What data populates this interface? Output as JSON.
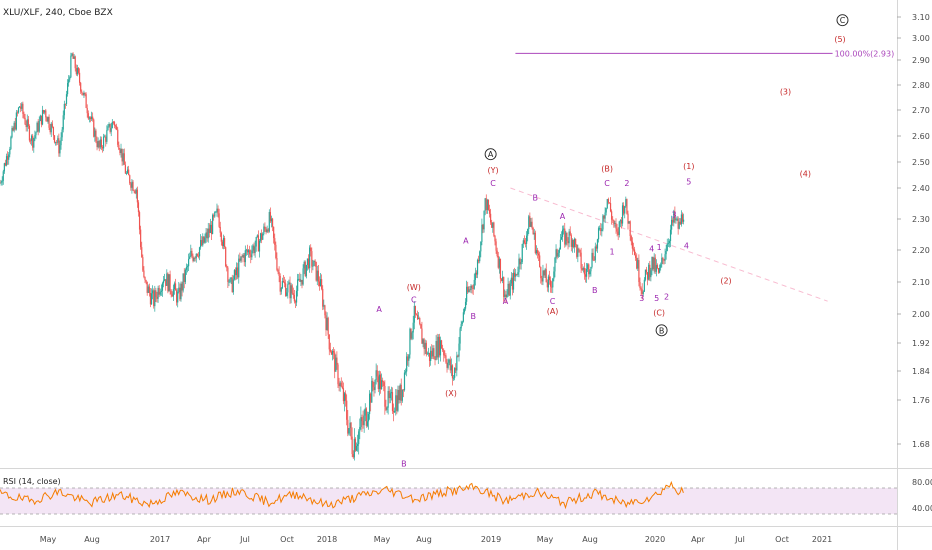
{
  "header": {
    "title": "XLU/XLF, 240, Cboe BZX"
  },
  "rsi": {
    "label": "RSI (14, close)",
    "upper": 80,
    "lower": 40,
    "ticks": [
      "80.00",
      "40.00"
    ]
  },
  "colors": {
    "up": "#26a69a",
    "down": "#ef5350",
    "wave_red": "#c62828",
    "wave_purple": "#9c27b0",
    "fib": "#ab47bc",
    "rsi_line": "#f57c00",
    "rsi_band": "#f3e5f5"
  },
  "chart_data": {
    "type": "candlestick",
    "symbol": "XLU/XLF",
    "interval": "240",
    "exchange": "Cboe BZX",
    "ylim": [
      1.6,
      3.1
    ],
    "y_ticks": [
      "3.10",
      "3.00",
      "2.90",
      "2.80",
      "2.70",
      "2.60",
      "2.50",
      "2.40",
      "2.30",
      "2.20",
      "2.10",
      "2.00",
      "1.92",
      "1.84",
      "1.76",
      "1.68"
    ],
    "x_ticks": [
      "May",
      "Aug",
      "2017",
      "Apr",
      "Jul",
      "Oct",
      "2018",
      "May",
      "Aug",
      "2019",
      "May",
      "Aug",
      "2020",
      "Apr",
      "Jul",
      "Oct",
      "2021"
    ],
    "price_path": [
      {
        "t": 0.0,
        "v": 2.42
      },
      {
        "t": 4.0,
        "v": 2.72
      },
      {
        "t": 6.5,
        "v": 2.58
      },
      {
        "t": 9.0,
        "v": 2.7
      },
      {
        "t": 12.0,
        "v": 2.55
      },
      {
        "t": 14.5,
        "v": 2.92
      },
      {
        "t": 17.0,
        "v": 2.75
      },
      {
        "t": 20.0,
        "v": 2.55
      },
      {
        "t": 23.0,
        "v": 2.66
      },
      {
        "t": 25.5,
        "v": 2.45
      },
      {
        "t": 27.5,
        "v": 2.4
      },
      {
        "t": 29.0,
        "v": 2.1
      },
      {
        "t": 31.0,
        "v": 2.04
      },
      {
        "t": 33.0,
        "v": 2.12
      },
      {
        "t": 36.0,
        "v": 2.05
      },
      {
        "t": 38.5,
        "v": 2.18
      },
      {
        "t": 41.0,
        "v": 2.22
      },
      {
        "t": 44.0,
        "v": 2.32
      },
      {
        "t": 46.5,
        "v": 2.08
      },
      {
        "t": 49.0,
        "v": 2.18
      },
      {
        "t": 52.0,
        "v": 2.22
      },
      {
        "t": 54.5,
        "v": 2.3
      },
      {
        "t": 56.5,
        "v": 2.1
      },
      {
        "t": 59.5,
        "v": 2.06
      },
      {
        "t": 62.5,
        "v": 2.18
      },
      {
        "t": 64.5,
        "v": 2.1
      },
      {
        "t": 66.5,
        "v": 1.92
      },
      {
        "t": 69.0,
        "v": 1.78
      },
      {
        "t": 71.0,
        "v": 1.68
      },
      {
        "t": 73.5,
        "v": 1.72
      },
      {
        "t": 76.0,
        "v": 1.83
      },
      {
        "t": 78.5,
        "v": 1.75
      },
      {
        "t": 81.0,
        "v": 1.78
      },
      {
        "t": 83.5,
        "v": 2.0
      },
      {
        "t": 86.5,
        "v": 1.88
      },
      {
        "t": 89.0,
        "v": 1.92
      },
      {
        "t": 91.5,
        "v": 1.82
      },
      {
        "t": 94.0,
        "v": 2.05
      },
      {
        "t": 96.0,
        "v": 2.12
      },
      {
        "t": 98.0,
        "v": 2.36
      },
      {
        "t": 100.0,
        "v": 2.22
      },
      {
        "t": 102.0,
        "v": 2.05
      },
      {
        "t": 104.0,
        "v": 2.12
      },
      {
        "t": 107.0,
        "v": 2.3
      },
      {
        "t": 109.0,
        "v": 2.14
      },
      {
        "t": 111.0,
        "v": 2.08
      },
      {
        "t": 113.0,
        "v": 2.24
      },
      {
        "t": 115.5,
        "v": 2.24
      },
      {
        "t": 118.0,
        "v": 2.12
      },
      {
        "t": 120.5,
        "v": 2.22
      },
      {
        "t": 122.5,
        "v": 2.37
      },
      {
        "t": 124.5,
        "v": 2.24
      },
      {
        "t": 126.0,
        "v": 2.36
      },
      {
        "t": 128.0,
        "v": 2.2
      },
      {
        "t": 129.5,
        "v": 2.08
      },
      {
        "t": 131.5,
        "v": 2.16
      },
      {
        "t": 133.0,
        "v": 2.12
      },
      {
        "t": 134.5,
        "v": 2.22
      },
      {
        "t": 136.0,
        "v": 2.3
      },
      {
        "t": 137.0,
        "v": 2.27
      },
      {
        "t": 138.0,
        "v": 2.33
      }
    ],
    "rsi_path": [
      {
        "t": 0,
        "v": 62
      },
      {
        "t": 6,
        "v": 48
      },
      {
        "t": 12,
        "v": 66
      },
      {
        "t": 18,
        "v": 44
      },
      {
        "t": 24,
        "v": 60
      },
      {
        "t": 30,
        "v": 42
      },
      {
        "t": 36,
        "v": 64
      },
      {
        "t": 42,
        "v": 50
      },
      {
        "t": 48,
        "v": 68
      },
      {
        "t": 54,
        "v": 46
      },
      {
        "t": 60,
        "v": 62
      },
      {
        "t": 66,
        "v": 40
      },
      {
        "t": 72,
        "v": 56
      },
      {
        "t": 78,
        "v": 70
      },
      {
        "t": 84,
        "v": 52
      },
      {
        "t": 90,
        "v": 66
      },
      {
        "t": 96,
        "v": 74
      },
      {
        "t": 102,
        "v": 48
      },
      {
        "t": 108,
        "v": 66
      },
      {
        "t": 114,
        "v": 44
      },
      {
        "t": 120,
        "v": 64
      },
      {
        "t": 126,
        "v": 42
      },
      {
        "t": 132,
        "v": 58
      },
      {
        "t": 135,
        "v": 80
      },
      {
        "t": 138,
        "v": 62
      }
    ],
    "trendline": [
      {
        "t": 103.0,
        "v": 2.4
      },
      {
        "t": 167.0,
        "v": 2.04
      }
    ],
    "fib_level": {
      "label": "100.00%(2.93)",
      "value": 2.93,
      "t_start": 104,
      "t_end": 168
    },
    "wave_labels": [
      {
        "text": "A",
        "t": 76.5,
        "v": 2.015,
        "color": "purple"
      },
      {
        "text": "B",
        "t": 81.5,
        "v": 1.645,
        "color": "purple"
      },
      {
        "text": "(W)",
        "t": 83.5,
        "v": 2.085,
        "color": "red"
      },
      {
        "text": "C",
        "t": 83.5,
        "v": 2.045,
        "color": "purple"
      },
      {
        "text": "(X)",
        "t": 91.0,
        "v": 1.78,
        "color": "red"
      },
      {
        "text": "A",
        "t": 94.0,
        "v": 2.23,
        "color": "purple"
      },
      {
        "text": "B",
        "t": 95.5,
        "v": 1.995,
        "color": "purple"
      },
      {
        "text": "(Y)",
        "t": 99.5,
        "v": 2.47,
        "color": "red"
      },
      {
        "text": "C",
        "t": 99.5,
        "v": 2.42,
        "color": "purple"
      },
      {
        "text": "A",
        "t": 102.0,
        "v": 2.04,
        "color": "purple"
      },
      {
        "text": "B",
        "t": 108.0,
        "v": 2.37,
        "color": "purple"
      },
      {
        "text": "C",
        "t": 111.5,
        "v": 2.04,
        "color": "purple"
      },
      {
        "text": "(A)",
        "t": 111.5,
        "v": 2.01,
        "color": "red"
      },
      {
        "text": "A",
        "t": 113.5,
        "v": 2.31,
        "color": "purple"
      },
      {
        "text": "B",
        "t": 120.0,
        "v": 2.075,
        "color": "purple"
      },
      {
        "text": "(B)",
        "t": 122.5,
        "v": 2.475,
        "color": "red"
      },
      {
        "text": "C",
        "t": 122.5,
        "v": 2.42,
        "color": "purple"
      },
      {
        "text": "1",
        "t": 123.5,
        "v": 2.195,
        "color": "purple"
      },
      {
        "text": "2",
        "t": 126.5,
        "v": 2.42,
        "color": "purple"
      },
      {
        "text": "3",
        "t": 129.5,
        "v": 2.05,
        "color": "purple"
      },
      {
        "text": "4",
        "t": 131.5,
        "v": 2.205,
        "color": "purple"
      },
      {
        "text": "1",
        "t": 133.0,
        "v": 2.21,
        "color": "purple"
      },
      {
        "text": "5",
        "t": 132.5,
        "v": 2.05,
        "color": "purple"
      },
      {
        "text": "2",
        "t": 134.5,
        "v": 2.055,
        "color": "purple"
      },
      {
        "text": "(C)",
        "t": 133.0,
        "v": 2.005,
        "color": "red"
      },
      {
        "text": "3",
        "t": 136.0,
        "v": 2.315,
        "color": "purple"
      },
      {
        "text": "4",
        "t": 138.5,
        "v": 2.215,
        "color": "purple"
      },
      {
        "text": "(1)",
        "t": 139.0,
        "v": 2.485,
        "color": "red"
      },
      {
        "text": "5",
        "t": 139.0,
        "v": 2.425,
        "color": "purple"
      },
      {
        "text": "(2)",
        "t": 146.5,
        "v": 2.105,
        "color": "red"
      },
      {
        "text": "(3)",
        "t": 158.5,
        "v": 2.775,
        "color": "red"
      },
      {
        "text": "(4)",
        "t": 162.5,
        "v": 2.455,
        "color": "red"
      },
      {
        "text": "(5)",
        "t": 169.5,
        "v": 2.995,
        "color": "red"
      }
    ],
    "circled_labels": [
      {
        "text": "A",
        "t": 99.0,
        "v": 2.53
      },
      {
        "text": "B",
        "t": 133.5,
        "v": 1.955
      },
      {
        "text": "C",
        "t": 170.0,
        "v": 3.085
      }
    ]
  }
}
